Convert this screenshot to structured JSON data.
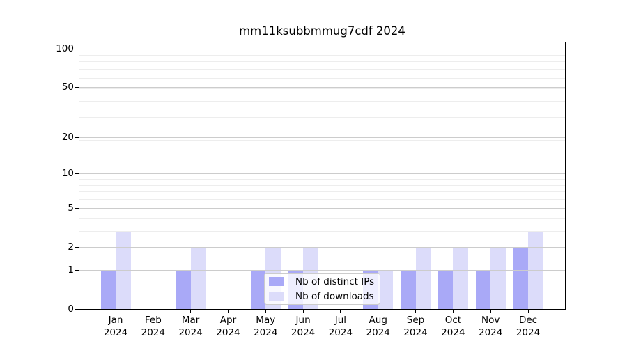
{
  "chart_data": {
    "type": "bar",
    "title": "mm11ksubbmmug7cdf 2024",
    "categories": [
      "Jan",
      "Feb",
      "Mar",
      "Apr",
      "May",
      "Jun",
      "Jul",
      "Aug",
      "Sep",
      "Oct",
      "Nov",
      "Dec"
    ],
    "x_year": "2024",
    "series": [
      {
        "name": "Nb of distinct IPs",
        "color": "#a9a9f7",
        "values": [
          1,
          0,
          1,
          0,
          1,
          1,
          0,
          1,
          1,
          1,
          1,
          2
        ]
      },
      {
        "name": "Nb of downloads",
        "color": "#dcdcfa",
        "values": [
          3,
          0,
          2,
          0,
          2,
          2,
          0,
          1,
          2,
          2,
          2,
          3
        ]
      }
    ],
    "y_ticks": [
      0,
      1,
      2,
      5,
      10,
      20,
      50,
      100
    ],
    "y_scale": "log10(1+x)",
    "ylim": [
      0,
      100
    ],
    "grid": "horizontal",
    "legend_position": "lower center",
    "colors": {
      "major_grid": "#cccccc",
      "minor_grid": "#ededed",
      "axis": "#000000"
    }
  }
}
